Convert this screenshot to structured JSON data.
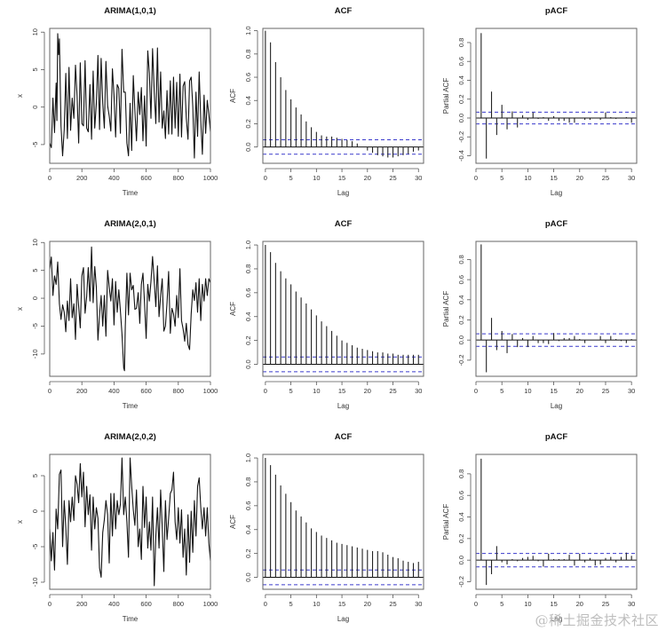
{
  "watermark": "@稀土掘金技术社区",
  "chart_data": [
    {
      "type": "line",
      "title": "ARIMA(1,0,1)",
      "xlabel": "Time",
      "ylabel": "x",
      "xlim": [
        0,
        1000
      ],
      "ylim": [
        -7.5,
        10.5
      ],
      "xticks": [
        0,
        200,
        400,
        600,
        800,
        1000
      ],
      "yticks": [
        -5,
        0,
        5,
        10
      ],
      "x": [
        0,
        10,
        20,
        30,
        40,
        45,
        50,
        55,
        60,
        70,
        80,
        90,
        100,
        110,
        120,
        130,
        140,
        150,
        160,
        170,
        180,
        190,
        200,
        210,
        220,
        230,
        240,
        250,
        260,
        270,
        280,
        290,
        300,
        310,
        320,
        330,
        340,
        350,
        360,
        370,
        380,
        390,
        400,
        410,
        420,
        430,
        440,
        450,
        460,
        470,
        480,
        490,
        500,
        510,
        520,
        530,
        540,
        550,
        560,
        570,
        580,
        590,
        600,
        610,
        620,
        630,
        640,
        650,
        660,
        670,
        680,
        690,
        700,
        710,
        720,
        730,
        740,
        750,
        760,
        770,
        780,
        790,
        800,
        810,
        820,
        830,
        840,
        850,
        860,
        870,
        880,
        890,
        900,
        910,
        920,
        930,
        940,
        950,
        960,
        970,
        980,
        990,
        1000
      ],
      "values": [
        -4.8,
        -5.4,
        1.2,
        -3.4,
        3.2,
        -1.8,
        9.8,
        7,
        9.1,
        -2.5,
        -6.5,
        -3,
        4.5,
        -4.2,
        5.3,
        -3.1,
        1.2,
        -1.5,
        5.6,
        1.5,
        -4.8,
        5.9,
        -2.2,
        -2.5,
        6.2,
        -2.8,
        -3.3,
        3,
        -4.3,
        4.8,
        -2.8,
        0.5,
        6.9,
        -3,
        6.5,
        0.5,
        -2.8,
        6.1,
        0.2,
        -1.2,
        -3.2,
        5.1,
        1.5,
        -4,
        3,
        2.5,
        -3.5,
        7.7,
        2,
        2,
        -4.8,
        -6.5,
        0.5,
        -5.8,
        4.2,
        -0.5,
        -4.5,
        2,
        -1,
        2.6,
        -4.5,
        1.5,
        -5.2,
        7.5,
        4.5,
        -1.5,
        7.8,
        2,
        -2.2,
        7.9,
        -2,
        4.7,
        -2.8,
        -0.5,
        -4.2,
        2.2,
        -3.6,
        3.5,
        -3.6,
        4,
        -2.8,
        3.3,
        -3.9,
        4.4,
        -4,
        2.8,
        3.4,
        -1.5,
        -4.3,
        3.5,
        4,
        0.1,
        -6.8,
        2,
        -3.9,
        4.7,
        -1.8,
        -6.3,
        1.6,
        -3.5,
        0.9,
        -1,
        -3.3
      ]
    },
    {
      "type": "bar",
      "title": "ACF",
      "xlabel": "Lag",
      "ylabel": "ACF",
      "xlim": [
        -0.5,
        31
      ],
      "ylim": [
        -0.14,
        1.02
      ],
      "xticks": [
        0,
        5,
        10,
        15,
        20,
        25,
        30
      ],
      "yticks": [
        0.0,
        0.2,
        0.4,
        0.6,
        0.8,
        1.0
      ],
      "confidence_band": 0.062,
      "categories": [
        0,
        1,
        2,
        3,
        4,
        5,
        6,
        7,
        8,
        9,
        10,
        11,
        12,
        13,
        14,
        15,
        16,
        17,
        18,
        19,
        20,
        21,
        22,
        23,
        24,
        25,
        26,
        27,
        28,
        29,
        30
      ],
      "values": [
        1.0,
        0.9,
        0.73,
        0.6,
        0.49,
        0.41,
        0.34,
        0.28,
        0.22,
        0.17,
        0.13,
        0.1,
        0.09,
        0.09,
        0.08,
        0.07,
        0.06,
        0.05,
        0.03,
        0.0,
        -0.03,
        -0.05,
        -0.07,
        -0.08,
        -0.09,
        -0.09,
        -0.08,
        -0.07,
        -0.06,
        -0.04,
        -0.03
      ]
    },
    {
      "type": "bar",
      "title": "pACF",
      "xlabel": "Lag",
      "ylabel": "Partial ACF",
      "xlim": [
        0,
        31
      ],
      "ylim": [
        -0.48,
        0.95
      ],
      "xticks": [
        0,
        5,
        10,
        15,
        20,
        25,
        30
      ],
      "yticks": [
        -0.4,
        -0.2,
        0.0,
        0.2,
        0.4,
        0.6,
        0.8
      ],
      "confidence_band": 0.062,
      "categories": [
        1,
        2,
        3,
        4,
        5,
        6,
        7,
        8,
        9,
        10,
        11,
        12,
        13,
        14,
        15,
        16,
        17,
        18,
        19,
        20,
        21,
        22,
        23,
        24,
        25,
        26,
        27,
        28,
        29,
        30
      ],
      "values": [
        0.9,
        -0.43,
        0.28,
        -0.18,
        0.14,
        -0.12,
        0.07,
        -0.1,
        0.03,
        -0.02,
        0.06,
        -0.01,
        0.01,
        -0.03,
        0.02,
        -0.03,
        -0.03,
        -0.05,
        -0.05,
        0.0,
        -0.02,
        -0.02,
        0.0,
        -0.02,
        0.06,
        0.01,
        -0.01,
        0.0,
        0.01,
        -0.05
      ]
    },
    {
      "type": "line",
      "title": "ARIMA(2,0,1)",
      "xlabel": "Time",
      "ylabel": "x",
      "xlim": [
        0,
        1000
      ],
      "ylim": [
        -14,
        10.2
      ],
      "xticks": [
        0,
        200,
        400,
        600,
        800,
        1000
      ],
      "yticks": [
        -10,
        -5,
        0,
        5,
        10
      ],
      "x": [
        0,
        10,
        20,
        30,
        40,
        50,
        60,
        70,
        80,
        90,
        100,
        110,
        120,
        130,
        140,
        150,
        160,
        170,
        180,
        190,
        200,
        210,
        220,
        230,
        240,
        250,
        260,
        270,
        280,
        290,
        300,
        310,
        320,
        330,
        340,
        350,
        360,
        370,
        380,
        390,
        400,
        410,
        420,
        430,
        440,
        450,
        460,
        465,
        470,
        480,
        490,
        500,
        510,
        520,
        530,
        540,
        550,
        560,
        570,
        580,
        590,
        600,
        610,
        620,
        630,
        640,
        650,
        660,
        670,
        680,
        690,
        700,
        710,
        720,
        730,
        740,
        750,
        760,
        770,
        780,
        790,
        800,
        810,
        820,
        830,
        840,
        850,
        860,
        870,
        880,
        890,
        900,
        910,
        920,
        930,
        940,
        950,
        960,
        970,
        980,
        990,
        1000
      ],
      "values": [
        5.2,
        7.4,
        0.5,
        4,
        2.5,
        6.5,
        -1,
        -3.8,
        -1.2,
        -2.5,
        -6,
        -0.5,
        -4,
        3.5,
        -3.5,
        -1,
        -7.4,
        2.5,
        -1.5,
        -5.3,
        4,
        5.5,
        -2.7,
        0.3,
        5.5,
        -0.5,
        9.2,
        -0.8,
        5.7,
        2,
        -7.5,
        -3,
        0.5,
        -5,
        0.5,
        -6.8,
        5,
        2,
        -0.5,
        3.5,
        -4.8,
        3,
        -2.5,
        1.5,
        -2.3,
        -6.5,
        -12.5,
        -13,
        -5,
        4.5,
        -3,
        4.5,
        1.5,
        2.3,
        -2,
        -1.8,
        1,
        -4.5,
        2.5,
        4.5,
        -1,
        -7.2,
        2.5,
        -0.5,
        3,
        7.5,
        3,
        -1.5,
        5.8,
        -3.3,
        0.5,
        3.5,
        -5.9,
        -5,
        -0.8,
        4.8,
        -6.3,
        -1.8,
        -2.8,
        -5,
        0.5,
        -3.5,
        5.3,
        -4,
        -5.5,
        -7.7,
        -4.5,
        -8.3,
        -9.2,
        -2.8,
        1.5,
        -0.4,
        2.8,
        -2.5,
        3.5,
        -4,
        2.5,
        -0.5,
        3.5,
        0.5,
        3.5,
        2.8
      ]
    },
    {
      "type": "bar",
      "title": "ACF",
      "xlabel": "Lag",
      "ylabel": "ACF",
      "xlim": [
        -0.5,
        31
      ],
      "ylim": [
        -0.1,
        1.03
      ],
      "xticks": [
        0,
        5,
        10,
        15,
        20,
        25,
        30
      ],
      "yticks": [
        0.0,
        0.2,
        0.4,
        0.6,
        0.8,
        1.0
      ],
      "confidence_band": 0.062,
      "categories": [
        0,
        1,
        2,
        3,
        4,
        5,
        6,
        7,
        8,
        9,
        10,
        11,
        12,
        13,
        14,
        15,
        16,
        17,
        18,
        19,
        20,
        21,
        22,
        23,
        24,
        25,
        26,
        27,
        28,
        29,
        30
      ],
      "values": [
        1.0,
        0.94,
        0.85,
        0.78,
        0.72,
        0.67,
        0.61,
        0.56,
        0.51,
        0.46,
        0.41,
        0.36,
        0.32,
        0.28,
        0.24,
        0.2,
        0.18,
        0.16,
        0.14,
        0.13,
        0.12,
        0.11,
        0.1,
        0.1,
        0.09,
        0.09,
        0.08,
        0.08,
        0.08,
        0.08,
        0.08
      ]
    },
    {
      "type": "bar",
      "title": "pACF",
      "xlabel": "Lag",
      "ylabel": "Partial ACF",
      "xlim": [
        0,
        31
      ],
      "ylim": [
        -0.36,
        0.98
      ],
      "xticks": [
        0,
        5,
        10,
        15,
        20,
        25,
        30
      ],
      "yticks": [
        -0.2,
        0.0,
        0.2,
        0.4,
        0.6,
        0.8
      ],
      "confidence_band": 0.062,
      "categories": [
        1,
        2,
        3,
        4,
        5,
        6,
        7,
        8,
        9,
        10,
        11,
        12,
        13,
        14,
        15,
        16,
        17,
        18,
        19,
        20,
        21,
        22,
        23,
        24,
        25,
        26,
        27,
        28,
        29,
        30
      ],
      "values": [
        0.95,
        -0.32,
        0.22,
        -0.1,
        0.09,
        -0.13,
        0.06,
        -0.07,
        0.02,
        -0.07,
        0.04,
        -0.03,
        -0.03,
        -0.04,
        0.07,
        -0.01,
        0.02,
        0.02,
        0.04,
        0.01,
        -0.03,
        0.0,
        0.0,
        0.04,
        -0.03,
        0.04,
        0.01,
        -0.01,
        -0.03,
        0.01
      ]
    },
    {
      "type": "line",
      "title": "ARIMA(2,0,2)",
      "xlabel": "Time",
      "ylabel": "x",
      "xlim": [
        0,
        1000
      ],
      "ylim": [
        -11,
        8
      ],
      "xticks": [
        0,
        200,
        400,
        600,
        800,
        1000
      ],
      "yticks": [
        -10,
        -5,
        0,
        5
      ],
      "x": [
        0,
        10,
        20,
        30,
        40,
        50,
        60,
        70,
        80,
        90,
        100,
        110,
        120,
        130,
        140,
        150,
        160,
        170,
        180,
        190,
        200,
        210,
        220,
        230,
        240,
        250,
        260,
        270,
        280,
        290,
        300,
        310,
        320,
        330,
        340,
        350,
        360,
        370,
        380,
        390,
        400,
        410,
        420,
        430,
        440,
        450,
        460,
        470,
        480,
        490,
        500,
        510,
        520,
        530,
        540,
        550,
        560,
        570,
        580,
        590,
        600,
        610,
        620,
        630,
        640,
        650,
        660,
        670,
        680,
        690,
        700,
        710,
        720,
        730,
        740,
        750,
        760,
        770,
        780,
        790,
        800,
        810,
        820,
        830,
        840,
        850,
        860,
        870,
        880,
        890,
        900,
        910,
        920,
        930,
        940,
        950,
        960,
        970,
        980,
        990,
        1000
      ],
      "values": [
        -2.5,
        -7,
        -3,
        -8.3,
        0.3,
        -2.5,
        5.2,
        5.8,
        -5,
        1.5,
        -2.3,
        -7.5,
        1.5,
        -1.5,
        2,
        -1.3,
        5,
        3.8,
        1.2,
        6.7,
        2,
        5.5,
        -2.2,
        3.5,
        -0.5,
        2.3,
        -5.5,
        2,
        -2.5,
        0.5,
        -1,
        -8,
        -9.3,
        -3,
        -1.2,
        1.5,
        -0.5,
        -7.3,
        2.5,
        -3.5,
        2.5,
        -2.5,
        1.5,
        -0.5,
        1,
        7.5,
        -0.5,
        2,
        -1.5,
        -6.5,
        7.5,
        3.5,
        0.2,
        -2,
        3,
        -5,
        -2.5,
        -6.8,
        3.5,
        -2.3,
        2,
        -5.2,
        -1.5,
        -5.5,
        2,
        -10.5,
        -3.5,
        0.5,
        -5.2,
        3,
        -2.3,
        -8.5,
        1.5,
        -4,
        -1,
        2.5,
        3,
        5.5,
        -1.5,
        -4,
        0.5,
        -4.5,
        0.2,
        -6.5,
        -2.5,
        -9,
        -0.5,
        -7.2,
        0,
        -5.8,
        1.5,
        -3.5,
        3.5,
        4.7,
        0.5,
        -2.5,
        0.5,
        -3.5,
        0.5,
        -4.5,
        -7
      ]
    },
    {
      "type": "bar",
      "title": "ACF",
      "xlabel": "Lag",
      "ylabel": "ACF",
      "xlim": [
        -0.5,
        31
      ],
      "ylim": [
        -0.1,
        1.03
      ],
      "xticks": [
        0,
        5,
        10,
        15,
        20,
        25,
        30
      ],
      "yticks": [
        0.0,
        0.2,
        0.4,
        0.6,
        0.8,
        1.0
      ],
      "confidence_band": 0.062,
      "categories": [
        0,
        1,
        2,
        3,
        4,
        5,
        6,
        7,
        8,
        9,
        10,
        11,
        12,
        13,
        14,
        15,
        16,
        17,
        18,
        19,
        20,
        21,
        22,
        23,
        24,
        25,
        26,
        27,
        28,
        29,
        30
      ],
      "values": [
        1.0,
        0.94,
        0.86,
        0.77,
        0.7,
        0.63,
        0.56,
        0.51,
        0.46,
        0.41,
        0.38,
        0.35,
        0.33,
        0.31,
        0.29,
        0.28,
        0.27,
        0.26,
        0.25,
        0.24,
        0.23,
        0.22,
        0.22,
        0.21,
        0.19,
        0.17,
        0.16,
        0.14,
        0.13,
        0.12,
        0.13
      ]
    },
    {
      "type": "bar",
      "title": "pACF",
      "xlabel": "Lag",
      "ylabel": "Partial ACF",
      "xlim": [
        0,
        31
      ],
      "ylim": [
        -0.27,
        0.98
      ],
      "xticks": [
        0,
        5,
        10,
        15,
        20,
        25,
        30
      ],
      "yticks": [
        -0.2,
        0.0,
        0.2,
        0.4,
        0.6,
        0.8
      ],
      "confidence_band": 0.062,
      "categories": [
        1,
        2,
        3,
        4,
        5,
        6,
        7,
        8,
        9,
        10,
        11,
        12,
        13,
        14,
        15,
        16,
        17,
        18,
        19,
        20,
        21,
        22,
        23,
        24,
        25,
        26,
        27,
        28,
        29,
        30
      ],
      "values": [
        0.94,
        -0.23,
        -0.13,
        0.13,
        -0.02,
        -0.04,
        0.01,
        -0.01,
        0.02,
        0.03,
        0.04,
        -0.01,
        -0.06,
        0.06,
        0.01,
        0.01,
        0.01,
        0.05,
        -0.05,
        0.06,
        -0.02,
        0.02,
        -0.05,
        -0.04,
        0.02,
        0.03,
        -0.02,
        0.03,
        0.07,
        0.04
      ]
    }
  ]
}
